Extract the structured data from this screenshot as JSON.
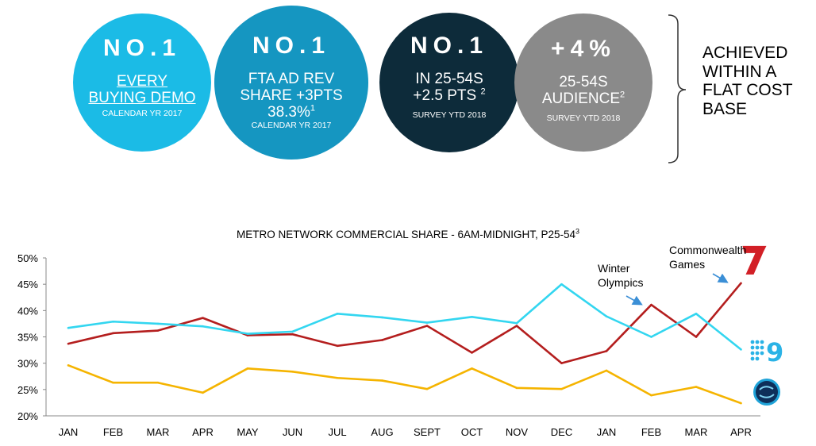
{
  "circles": [
    {
      "head": "NO.1",
      "lines": [
        "EVERY",
        "BUYING DEMO"
      ],
      "sub": "CALENDAR YR 2017",
      "color": "#1bbbe6"
    },
    {
      "head": "NO.1",
      "lines": [
        "FTA AD REV",
        "SHARE +3PTS",
        "38.3%"
      ],
      "sup3": "1",
      "sub": "CALENDAR YR 2017",
      "color": "#1596c1"
    },
    {
      "head": "NO.1",
      "lines": [
        "IN 25-54S",
        "+2.5 PTS "
      ],
      "sup2": "2",
      "sub": "SURVEY YTD 2018",
      "color": "#0d2b3a"
    },
    {
      "head": "+4%",
      "lines": [
        "25-54S",
        "AUDIENCE"
      ],
      "sup2": "2",
      "sub": "SURVEY YTD 2018",
      "color": "#8a8a8a"
    }
  ],
  "achieved": [
    "ACHIEVED",
    "WITHIN A",
    "FLAT COST",
    "BASE"
  ],
  "chart_data": {
    "type": "line",
    "title": "METRO NETWORK COMMERCIAL SHARE - 6AM-MIDNIGHT, P25-54",
    "title_sup": "3",
    "categories": [
      "JAN",
      "FEB",
      "MAR",
      "APR",
      "MAY",
      "JUN",
      "JUL",
      "AUG",
      "SEPT",
      "OCT",
      "NOV",
      "DEC",
      "JAN",
      "FEB",
      "MAR",
      "APR"
    ],
    "ylim": [
      20,
      50
    ],
    "yticks": [
      "20%",
      "25%",
      "30%",
      "35%",
      "40%",
      "45%",
      "50%"
    ],
    "grid": false,
    "series": [
      {
        "color": "#b41e1e",
        "logo": "seven-logo",
        "values": [
          33.7,
          35.7,
          36.2,
          38.6,
          35.3,
          35.5,
          33.3,
          34.4,
          37.1,
          32.0,
          37.1,
          30.0,
          32.3,
          41.1,
          35.0,
          45.2
        ]
      },
      {
        "color": "#33d6f0",
        "logo": "nine-logo",
        "values": [
          36.7,
          37.9,
          37.5,
          37.0,
          35.6,
          36.0,
          39.4,
          38.7,
          37.7,
          38.8,
          37.6,
          45.0,
          38.9,
          35.0,
          39.4,
          32.6
        ]
      },
      {
        "color": "#f5b400",
        "logo": "ten-logo",
        "values": [
          29.6,
          26.3,
          26.3,
          24.4,
          29.0,
          28.4,
          27.2,
          26.7,
          25.1,
          29.0,
          25.3,
          25.1,
          28.6,
          23.9,
          25.5,
          22.4
        ]
      }
    ],
    "annotations": [
      {
        "text": [
          "Winter",
          "Olympics"
        ],
        "target_index": 13
      },
      {
        "text": [
          "Commonwealth",
          "Games"
        ],
        "target_index": 15
      }
    ]
  }
}
